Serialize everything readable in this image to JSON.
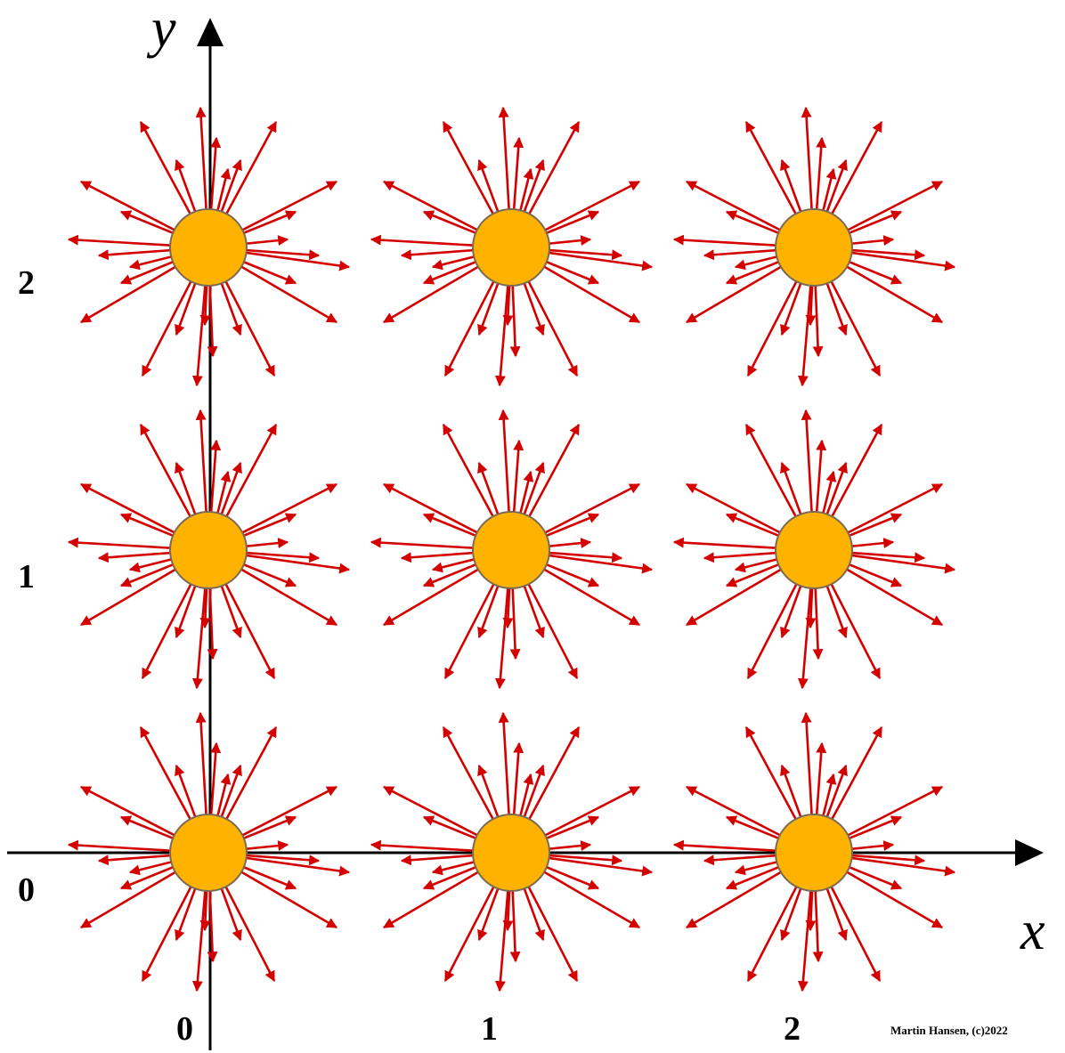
{
  "axes": {
    "x_label": "x",
    "y_label": "y",
    "x_ticks": [
      "0",
      "1",
      "2"
    ],
    "y_ticks": [
      "0",
      "1",
      "2"
    ]
  },
  "lattice": {
    "points": [
      {
        "x": 0,
        "y": 0
      },
      {
        "x": 1,
        "y": 0
      },
      {
        "x": 2,
        "y": 0
      },
      {
        "x": 0,
        "y": 1
      },
      {
        "x": 1,
        "y": 1
      },
      {
        "x": 2,
        "y": 1
      },
      {
        "x": 0,
        "y": 2
      },
      {
        "x": 1,
        "y": 2
      },
      {
        "x": 2,
        "y": 2
      }
    ]
  },
  "credit": "Martin Hansen, (c)2022",
  "colors": {
    "node_fill": "#FFB300",
    "node_stroke": "#7A6A55",
    "ray": "#D40000",
    "axis": "#000000"
  }
}
